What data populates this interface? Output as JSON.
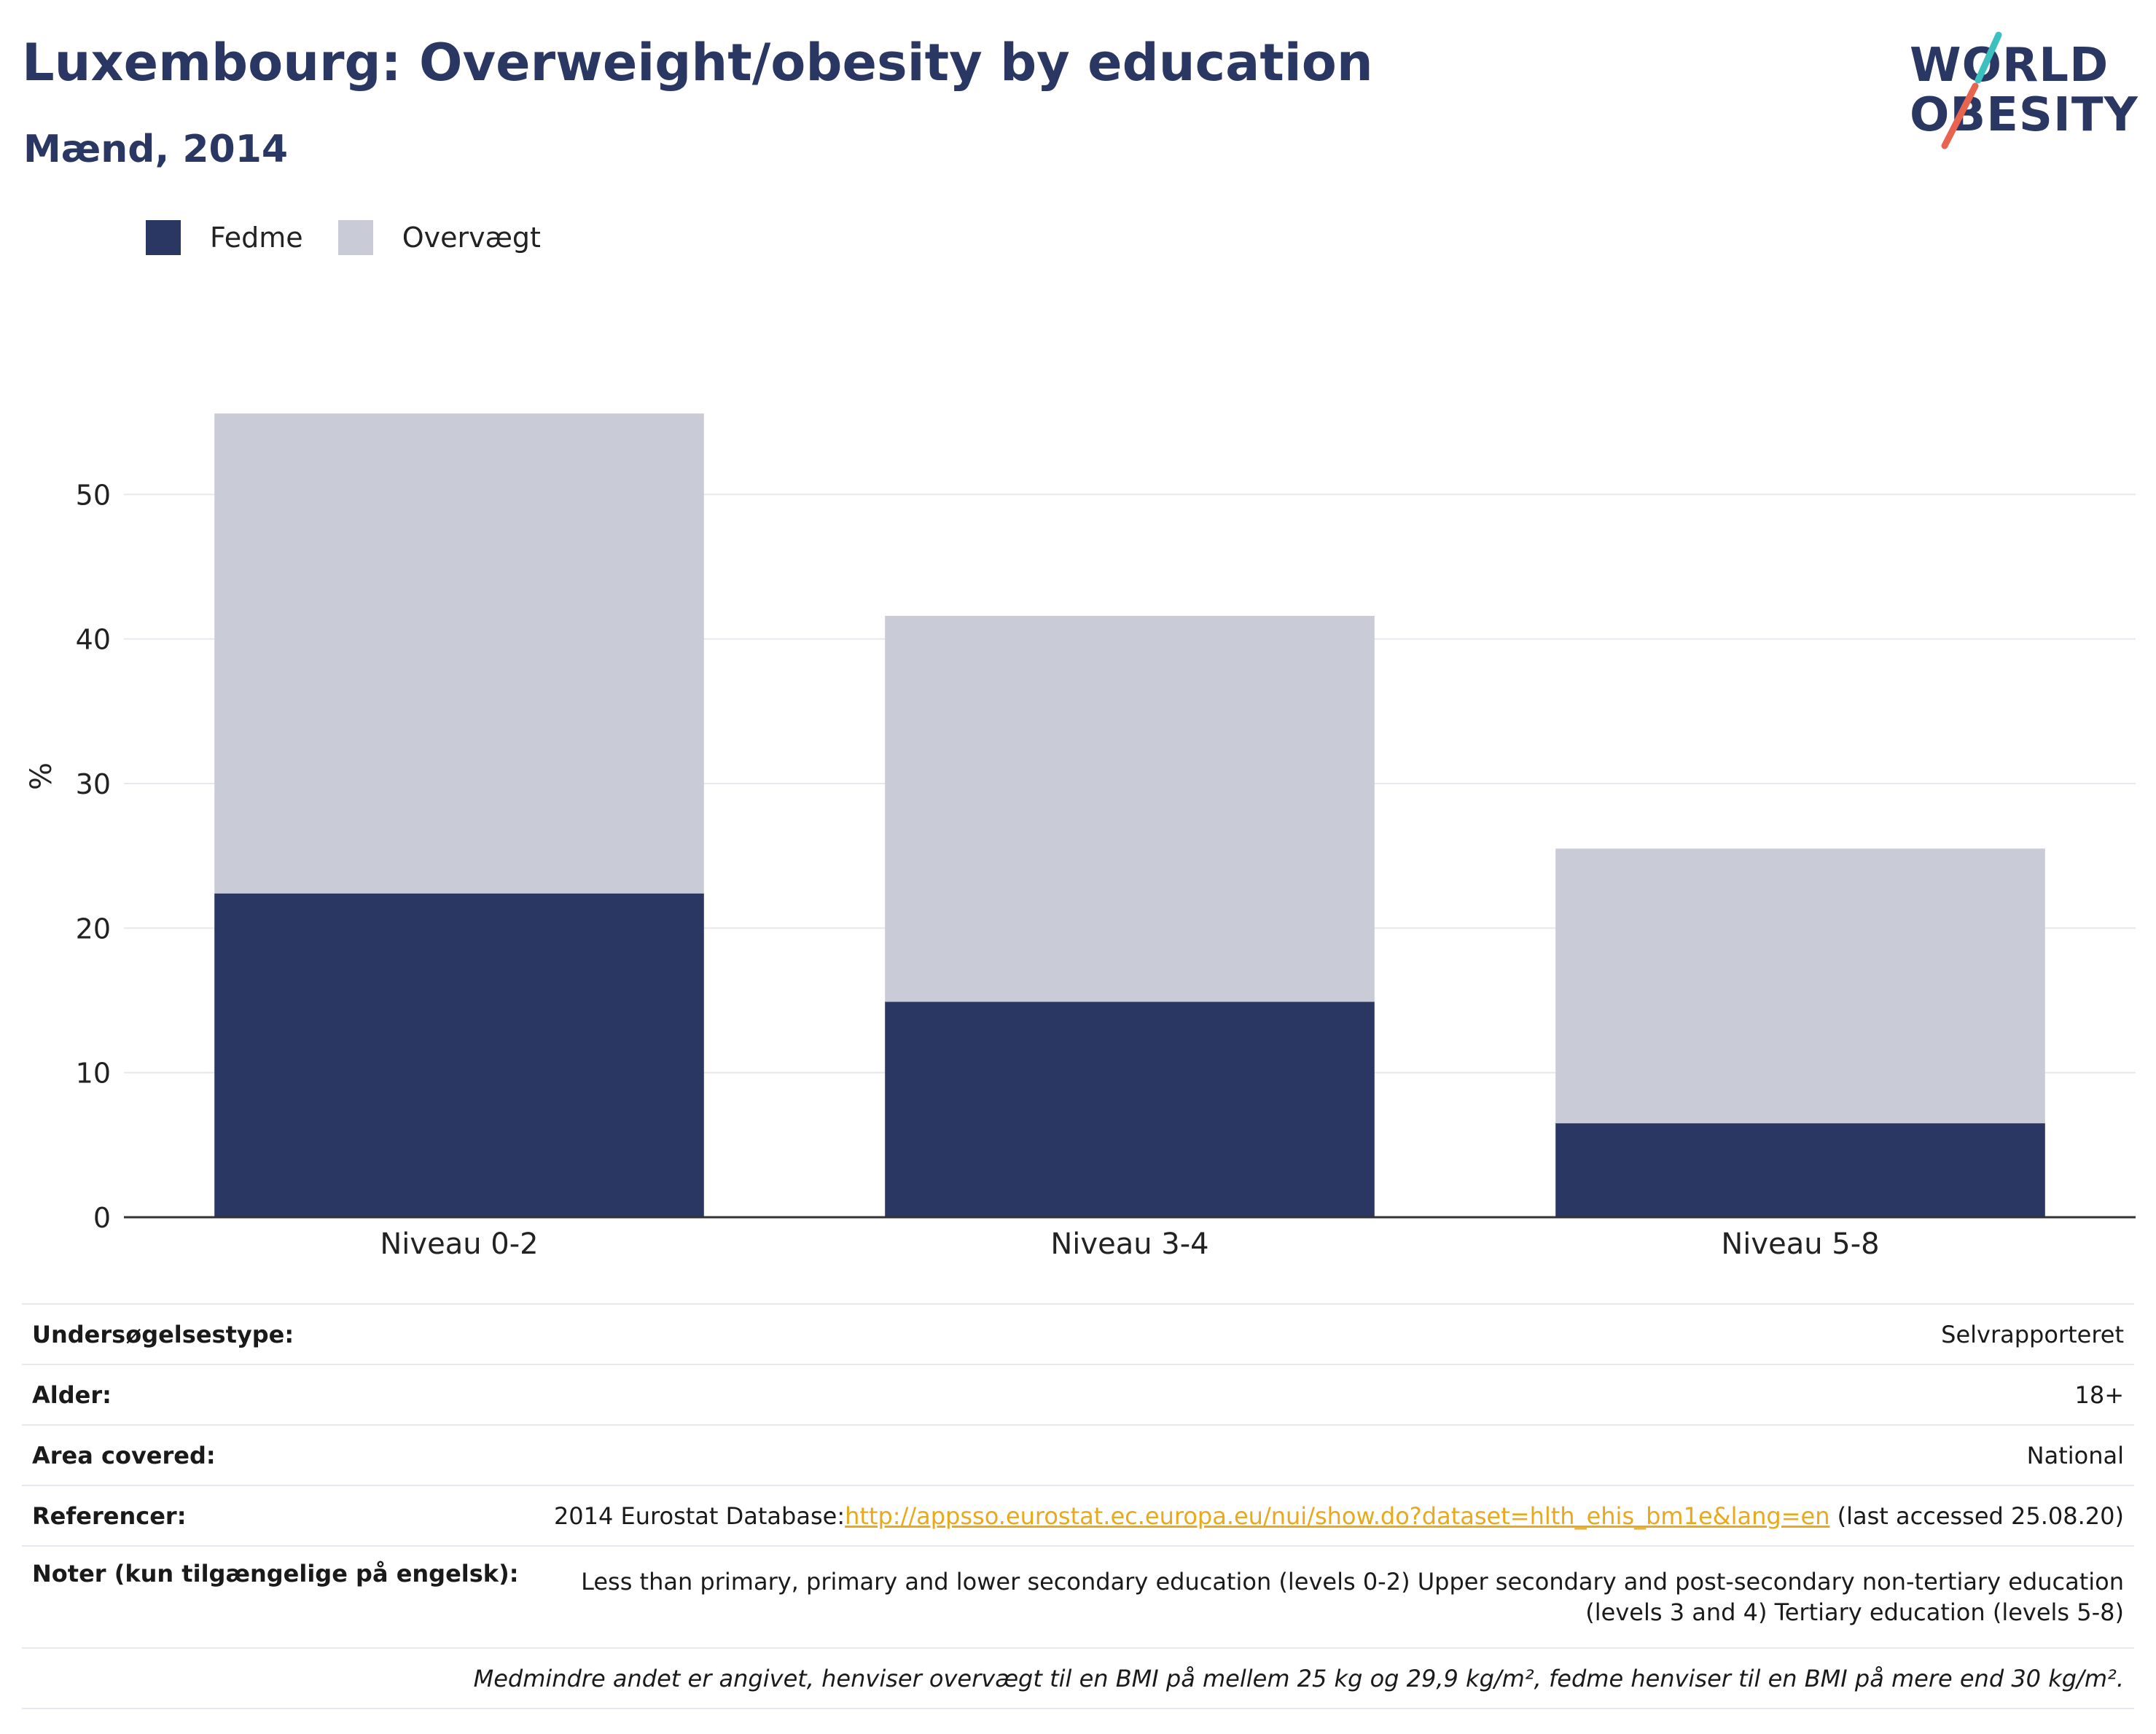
{
  "header": {
    "title": "Luxembourg: Overweight/obesity by education",
    "subtitle": "Mænd, 2014"
  },
  "logo": {
    "line1": "WORLD",
    "line2": "OBESITY",
    "slash_colors": [
      "#3bbfbf",
      "#e8644f"
    ]
  },
  "legend": {
    "items": [
      {
        "label": "Fedme",
        "color": "#2b3763"
      },
      {
        "label": "Overvægt",
        "color": "#c9ccd7"
      }
    ]
  },
  "chart_data": {
    "type": "bar",
    "stacked": true,
    "categories": [
      "Niveau 0-2",
      "Niveau 3-4",
      "Niveau 5-8"
    ],
    "series": [
      {
        "name": "Fedme",
        "color": "#2b3763",
        "values": [
          22.4,
          14.9,
          6.5
        ]
      },
      {
        "name": "Overvægt",
        "color": "#c9ccd7",
        "values": [
          33.2,
          26.7,
          19.0
        ]
      }
    ],
    "ylabel": "%",
    "yticks": [
      0,
      10,
      20,
      30,
      40,
      50
    ],
    "ylim": [
      0,
      60
    ],
    "grid": true,
    "legend_position": "top-left"
  },
  "info": {
    "survey_type": {
      "label": "Undersøgelsestype:",
      "value": "Selvrapporteret"
    },
    "age": {
      "label": "Alder:",
      "value": "18+"
    },
    "area": {
      "label": "Area covered:",
      "value": "National"
    },
    "references": {
      "label": "Referencer:",
      "prefix": "2014 Eurostat Database:",
      "link": "http://appsso.eurostat.ec.europa.eu/nui/show.do?dataset=hlth_ehis_bm1e&lang=en",
      "suffix": " (last accessed 25.08.20)"
    },
    "notes": {
      "label": "Noter (kun tilgængelige på engelsk):",
      "line1": "Less than primary, primary and lower secondary education (levels 0-2) Upper secondary and post-secondary non-tertiary education",
      "line2": "(levels 3 and 4) Tertiary education (levels 5-8)"
    },
    "footnote": "Medmindre andet er angivet, henviser overvægt til en BMI på mellem 25 kg og 29,9 kg/m², fedme henviser til en BMI på mere end 30 kg/m²."
  }
}
